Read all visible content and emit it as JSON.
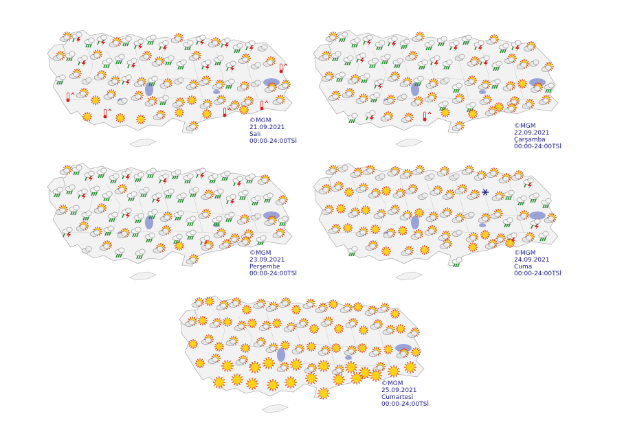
{
  "maps": [
    {
      "id": "p1",
      "copyright": "©MGM",
      "date": "21.09.2021",
      "day": "Salı",
      "time": "00:00-24:00TSİ"
    },
    {
      "id": "p2",
      "copyright": "©MGM",
      "date": "22.09.2021",
      "day": "Çarşamba",
      "time": "00:00-24:00TSİ"
    },
    {
      "id": "p3",
      "copyright": "©MGM",
      "date": "23.09.2021",
      "day": "Perşembe",
      "time": "00:00-24:00TSİ"
    },
    {
      "id": "p4",
      "copyright": "©MGM",
      "date": "24.09.2021",
      "day": "Cuma",
      "time": "00:00-24:00TSİ"
    },
    {
      "id": "p5",
      "copyright": "©MGM",
      "date": "25.09.2021",
      "day": "Cumartesi",
      "time": "00:00-24:00TSİ"
    }
  ],
  "icon_types": [
    "sun-icon",
    "partly-cloudy-icon",
    "cloud-icon",
    "rain-cloud-icon",
    "thunderstorm-icon",
    "thermometer-hot-icon",
    "snow-icon"
  ],
  "colors": {
    "land": "#f2f2f2",
    "border": "#b0b0b0",
    "water": "#9aa3d8",
    "caption": "#1a1a8c",
    "sun": "#ffd21a",
    "sun_ray": "#e03a00",
    "rain": "#1f8a2a",
    "lightning": "#d81e1e"
  }
}
